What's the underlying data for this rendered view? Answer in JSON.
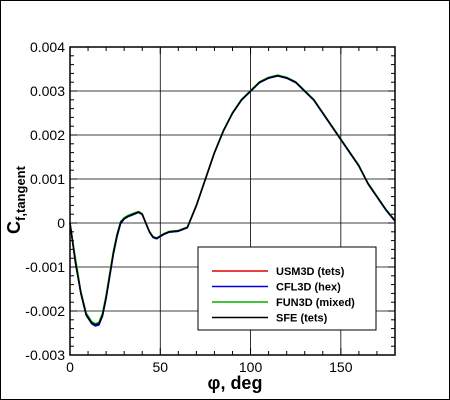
{
  "chart_data": {
    "type": "line",
    "xlabel": {
      "symbol": "φ",
      "rest": ", deg"
    },
    "ylabel": {
      "main": "C",
      "subscript": "f,tangent"
    },
    "xlim": [
      0,
      180
    ],
    "ylim": [
      -0.003,
      0.004
    ],
    "xticks": [
      0,
      50,
      100,
      150
    ],
    "xtick_labels": [
      "0",
      "50",
      "100",
      "150"
    ],
    "yticks": [
      -0.003,
      -0.002,
      -0.001,
      0,
      0.001,
      0.002,
      0.003,
      0.004
    ],
    "ytick_labels": [
      "-0.003",
      "-0.002",
      "-0.001",
      "0",
      "0.001",
      "0.002",
      "0.003",
      "0.004"
    ],
    "grid": true,
    "legend_position": "lower-right",
    "series": [
      {
        "name": "USM3D (tets)",
        "color": "#e00000",
        "x": [
          0,
          3,
          6,
          9,
          12,
          14,
          16,
          18,
          20,
          22,
          24,
          26,
          28,
          30,
          32,
          35,
          38,
          40,
          42,
          44,
          46,
          48,
          50,
          52,
          55,
          60,
          65,
          70,
          75,
          80,
          85,
          90,
          95,
          100,
          105,
          110,
          115,
          120,
          125,
          130,
          135,
          140,
          145,
          150,
          155,
          160,
          165,
          170,
          175,
          180
        ],
        "y": [
          0,
          -0.0009,
          -0.0016,
          -0.0021,
          -0.00228,
          -0.00232,
          -0.0023,
          -0.0021,
          -0.0017,
          -0.0012,
          -0.0007,
          -0.0003,
          0,
          0.0001,
          0.00015,
          0.0002,
          0.00025,
          0.0002,
          0,
          -0.0002,
          -0.00032,
          -0.00035,
          -0.0003,
          -0.00025,
          -0.0002,
          -0.00018,
          -0.0001,
          0.0004,
          0.001,
          0.0016,
          0.0021,
          0.0025,
          0.0028,
          0.003,
          0.0032,
          0.0033,
          0.00335,
          0.0033,
          0.0032,
          0.003,
          0.0028,
          0.0025,
          0.0022,
          0.0019,
          0.0016,
          0.0013,
          0.0009,
          0.0006,
          0.0003,
          5e-05
        ]
      },
      {
        "name": "CFL3D (hex)",
        "color": "#0000e0",
        "x": [
          0,
          3,
          6,
          9,
          12,
          14,
          16,
          18,
          20,
          22,
          24,
          26,
          28,
          30,
          32,
          35,
          38,
          40,
          42,
          44,
          46,
          48,
          50,
          52,
          55,
          60,
          65,
          70,
          75,
          80,
          85,
          90,
          95,
          100,
          105,
          110,
          115,
          120,
          125,
          130,
          135,
          140,
          145,
          150,
          155,
          160,
          165,
          170,
          175,
          180
        ],
        "y": [
          0,
          -0.0009,
          -0.0016,
          -0.0021,
          -0.00229,
          -0.00234,
          -0.00232,
          -0.00212,
          -0.00172,
          -0.00122,
          -0.00072,
          -0.00032,
          -2e-05,
          9e-05,
          0.00014,
          0.00019,
          0.00024,
          0.00019,
          -1e-05,
          -0.00021,
          -0.00033,
          -0.00036,
          -0.00031,
          -0.00026,
          -0.00021,
          -0.00019,
          -0.00011,
          0.00039,
          0.00099,
          0.00159,
          0.00209,
          0.00249,
          0.00279,
          0.00299,
          0.00319,
          0.00329,
          0.00334,
          0.00329,
          0.00319,
          0.00299,
          0.00279,
          0.00249,
          0.00219,
          0.00189,
          0.00159,
          0.00129,
          0.00089,
          0.00059,
          0.00029,
          4e-05
        ]
      },
      {
        "name": "FUN3D (mixed)",
        "color": "#00b000",
        "x": [
          0,
          3,
          6,
          9,
          12,
          14,
          16,
          18,
          20,
          22,
          24,
          26,
          28,
          30,
          32,
          35,
          38,
          40,
          42,
          44,
          46,
          48,
          50,
          52,
          55,
          60,
          65,
          70,
          75,
          80,
          85,
          90,
          95,
          100,
          105,
          110,
          115,
          120,
          125,
          130,
          135,
          140,
          145,
          150,
          155,
          160,
          165,
          170,
          175,
          180
        ],
        "y": [
          0,
          -0.0008,
          -0.00155,
          -0.00205,
          -0.00224,
          -0.00229,
          -0.00226,
          -0.00205,
          -0.00164,
          -0.00114,
          -0.00064,
          -0.00026,
          3e-05,
          0.00012,
          0.00017,
          0.00022,
          0.00026,
          0.00021,
          1e-05,
          -0.00019,
          -0.00031,
          -0.00034,
          -0.00029,
          -0.00024,
          -0.00019,
          -0.00017,
          -9e-05,
          0.00041,
          0.00101,
          0.00161,
          0.00211,
          0.00251,
          0.00281,
          0.00301,
          0.00321,
          0.00331,
          0.00336,
          0.00331,
          0.00321,
          0.00301,
          0.00281,
          0.00251,
          0.00221,
          0.00191,
          0.00161,
          0.00131,
          0.00091,
          0.00061,
          0.00031,
          6e-05
        ]
      },
      {
        "name": "SFE (tets)",
        "color": "#000000",
        "x": [
          0,
          3,
          6,
          9,
          12,
          14,
          16,
          18,
          20,
          22,
          24,
          26,
          28,
          30,
          32,
          35,
          38,
          40,
          42,
          44,
          46,
          48,
          50,
          52,
          55,
          60,
          65,
          70,
          75,
          80,
          85,
          90,
          95,
          100,
          105,
          110,
          115,
          120,
          125,
          130,
          135,
          140,
          145,
          150,
          155,
          160,
          165,
          170,
          175,
          180
        ],
        "y": [
          0,
          -0.00088,
          -0.00158,
          -0.00208,
          -0.00227,
          -0.00231,
          -0.00229,
          -0.00209,
          -0.00169,
          -0.00119,
          -0.00069,
          -0.00029,
          1e-05,
          0.0001,
          0.00015,
          0.0002,
          0.00025,
          0.0002,
          0,
          -0.0002,
          -0.00032,
          -0.00035,
          -0.0003,
          -0.00025,
          -0.0002,
          -0.00018,
          -0.0001,
          0.0004,
          0.001,
          0.0016,
          0.0021,
          0.0025,
          0.0028,
          0.003,
          0.0032,
          0.0033,
          0.00335,
          0.0033,
          0.0032,
          0.003,
          0.0028,
          0.0025,
          0.0022,
          0.0019,
          0.0016,
          0.0013,
          0.0009,
          0.0006,
          0.0003,
          5e-05
        ]
      }
    ]
  }
}
